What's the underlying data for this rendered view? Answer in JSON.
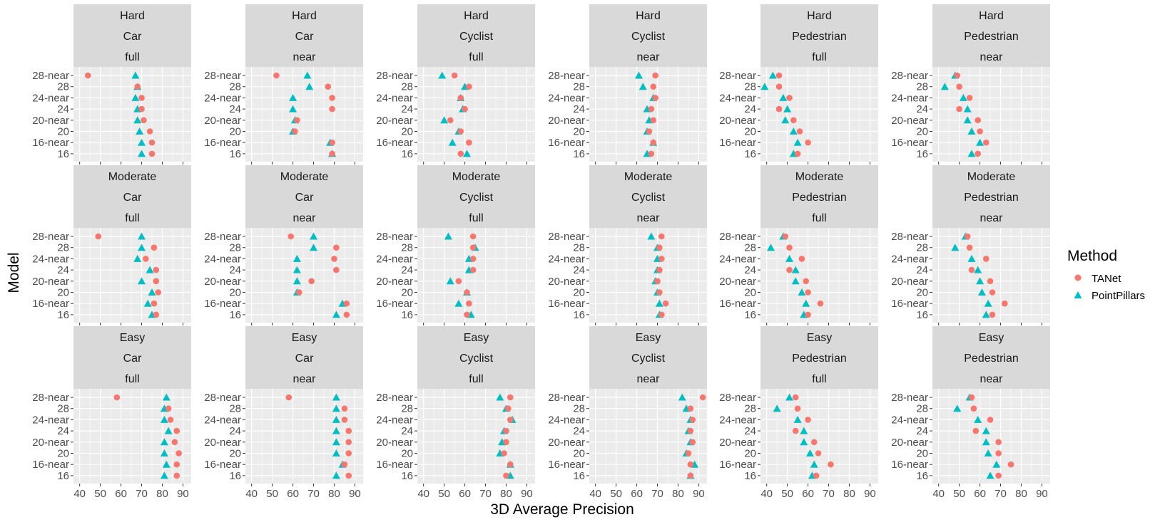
{
  "chart_data": {
    "type": "scatter",
    "xlabel": "3D Average Precision",
    "ylabel": "Model",
    "xlim": [
      37,
      94
    ],
    "x_ticks": [
      40,
      50,
      60,
      70,
      80,
      90
    ],
    "x_tick_labels": [
      "40",
      "50",
      "60",
      "70",
      "80",
      "90"
    ],
    "y_categories": [
      "28-near",
      "28",
      "24-near",
      "24",
      "20-near",
      "20",
      "16-near",
      "16"
    ],
    "grid": true,
    "legend": {
      "title": "Method",
      "position": "right",
      "entries": [
        {
          "name": "TANet",
          "color": "#F8766D",
          "shape": "circle"
        },
        {
          "name": "PointPillars",
          "color": "#00BFC4",
          "shape": "triangle"
        }
      ]
    },
    "facets": [
      {
        "strip": [
          "Hard",
          "Car",
          "full"
        ],
        "series": {
          "TANet": [
            44,
            68,
            70,
            70,
            71,
            74,
            75,
            75
          ],
          "PointPillars": [
            67,
            68,
            67,
            68,
            68,
            69,
            70,
            70
          ]
        }
      },
      {
        "strip": [
          "Hard",
          "Car",
          "near"
        ],
        "series": {
          "TANet": [
            52,
            77,
            79,
            79,
            62,
            61,
            79,
            79
          ],
          "PointPillars": [
            67,
            68,
            60,
            60,
            61,
            60,
            78,
            79
          ]
        }
      },
      {
        "strip": [
          "Hard",
          "Cyclist",
          "full"
        ],
        "series": {
          "TANet": [
            55,
            62,
            58,
            60,
            53,
            58,
            62,
            58
          ],
          "PointPillars": [
            49,
            60,
            58,
            59,
            50,
            57,
            54,
            61
          ]
        }
      },
      {
        "strip": [
          "Hard",
          "Cyclist",
          "near"
        ],
        "series": {
          "TANet": [
            69,
            68,
            69,
            67,
            68,
            66,
            68,
            67
          ],
          "PointPillars": [
            61,
            63,
            68,
            65,
            66,
            65,
            68,
            65
          ]
        }
      },
      {
        "strip": [
          "Hard",
          "Pedestrian",
          "full"
        ],
        "series": {
          "TANet": [
            46,
            46,
            51,
            46,
            53,
            56,
            60,
            55
          ],
          "PointPillars": [
            43,
            39,
            48,
            50,
            49,
            53,
            55,
            53
          ]
        }
      },
      {
        "strip": [
          "Hard",
          "Pedestrian",
          "near"
        ],
        "series": {
          "TANet": [
            49,
            50,
            55,
            50,
            59,
            60,
            63,
            59
          ],
          "PointPillars": [
            48,
            43,
            52,
            54,
            54,
            56,
            60,
            56
          ]
        }
      },
      {
        "strip": [
          "Moderate",
          "Car",
          "full"
        ],
        "series": {
          "TANet": [
            49,
            76,
            72,
            77,
            77,
            78,
            76,
            77
          ],
          "PointPillars": [
            70,
            70,
            68,
            74,
            70,
            75,
            73,
            75
          ]
        }
      },
      {
        "strip": [
          "Moderate",
          "Car",
          "near"
        ],
        "series": {
          "TANet": [
            59,
            81,
            80,
            81,
            69,
            63,
            86,
            86
          ],
          "PointPillars": [
            70,
            70,
            62,
            62,
            62,
            62,
            84,
            81
          ]
        }
      },
      {
        "strip": [
          "Moderate",
          "Cyclist",
          "full"
        ],
        "series": {
          "TANet": [
            64,
            64,
            64,
            64,
            57,
            61,
            62,
            61
          ],
          "PointPillars": [
            52,
            65,
            62,
            62,
            53,
            61,
            57,
            63
          ]
        }
      },
      {
        "strip": [
          "Moderate",
          "Cyclist",
          "near"
        ],
        "series": {
          "TANet": [
            72,
            71,
            72,
            71,
            70,
            71,
            74,
            72
          ],
          "PointPillars": [
            67,
            70,
            70,
            70,
            69,
            70,
            71,
            71
          ]
        }
      },
      {
        "strip": [
          "Moderate",
          "Pedestrian",
          "full"
        ],
        "series": {
          "TANet": [
            49,
            51,
            57,
            51,
            59,
            60,
            66,
            60
          ],
          "PointPillars": [
            48,
            42,
            51,
            54,
            54,
            57,
            59,
            58
          ]
        }
      },
      {
        "strip": [
          "Moderate",
          "Pedestrian",
          "near"
        ],
        "series": {
          "TANet": [
            54,
            55,
            63,
            56,
            65,
            66,
            72,
            66
          ],
          "PointPillars": [
            53,
            48,
            56,
            59,
            60,
            61,
            64,
            63
          ]
        }
      },
      {
        "strip": [
          "Easy",
          "Car",
          "full"
        ],
        "series": {
          "TANet": [
            58,
            83,
            84,
            87,
            86,
            88,
            87,
            87
          ],
          "PointPillars": [
            82,
            81,
            81,
            83,
            81,
            81,
            82,
            81
          ]
        }
      },
      {
        "strip": [
          "Easy",
          "Car",
          "near"
        ],
        "series": {
          "TANet": [
            58,
            85,
            85,
            87,
            87,
            87,
            85,
            87
          ],
          "PointPillars": [
            81,
            81,
            81,
            81,
            81,
            81,
            84,
            81
          ]
        }
      },
      {
        "strip": [
          "Easy",
          "Cyclist",
          "full"
        ],
        "series": {
          "TANet": [
            82,
            81,
            82,
            80,
            80,
            79,
            82,
            80
          ],
          "PointPillars": [
            77,
            80,
            83,
            79,
            78,
            77,
            82,
            82
          ]
        }
      },
      {
        "strip": [
          "Easy",
          "Cyclist",
          "near"
        ],
        "series": {
          "TANet": [
            92,
            86,
            87,
            86,
            87,
            85,
            86,
            86
          ],
          "PointPillars": [
            82,
            84,
            86,
            85,
            86,
            84,
            88,
            86
          ]
        }
      },
      {
        "strip": [
          "Easy",
          "Pedestrian",
          "full"
        ],
        "series": {
          "TANet": [
            54,
            55,
            60,
            54,
            63,
            65,
            71,
            64
          ],
          "PointPillars": [
            51,
            45,
            55,
            58,
            58,
            61,
            63,
            62
          ]
        }
      },
      {
        "strip": [
          "Easy",
          "Pedestrian",
          "near"
        ],
        "series": {
          "TANet": [
            56,
            57,
            65,
            58,
            69,
            69,
            75,
            69
          ],
          "PointPillars": [
            55,
            49,
            59,
            63,
            63,
            64,
            68,
            65
          ]
        }
      }
    ]
  }
}
